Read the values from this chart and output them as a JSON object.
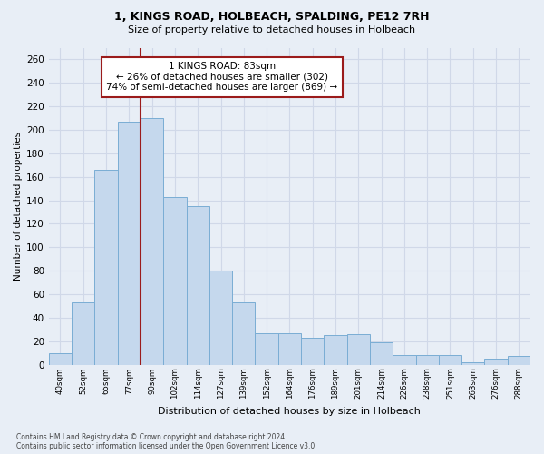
{
  "title1": "1, KINGS ROAD, HOLBEACH, SPALDING, PE12 7RH",
  "title2": "Size of property relative to detached houses in Holbeach",
  "xlabel": "Distribution of detached houses by size in Holbeach",
  "ylabel": "Number of detached properties",
  "bar_labels": [
    "40sqm",
    "52sqm",
    "65sqm",
    "77sqm",
    "90sqm",
    "102sqm",
    "114sqm",
    "127sqm",
    "139sqm",
    "152sqm",
    "164sqm",
    "176sqm",
    "189sqm",
    "201sqm",
    "214sqm",
    "226sqm",
    "238sqm",
    "251sqm",
    "263sqm",
    "276sqm",
    "288sqm"
  ],
  "bar_values": [
    10,
    53,
    166,
    207,
    210,
    143,
    135,
    80,
    53,
    27,
    27,
    23,
    25,
    26,
    19,
    8,
    8,
    8,
    2,
    5,
    7
  ],
  "bar_color": "#c5d8ed",
  "bar_edge_color": "#7aadd4",
  "vline_x": 3.5,
  "vline_color": "#9b1b1b",
  "annotation_text": "1 KINGS ROAD: 83sqm\n← 26% of detached houses are smaller (302)\n74% of semi-detached houses are larger (869) →",
  "annotation_box_color": "white",
  "annotation_box_edge": "#9b1b1b",
  "ylim": [
    0,
    270
  ],
  "yticks": [
    0,
    20,
    40,
    60,
    80,
    100,
    120,
    140,
    160,
    180,
    200,
    220,
    240,
    260
  ],
  "grid_color": "#d0d8e8",
  "footnote1": "Contains HM Land Registry data © Crown copyright and database right 2024.",
  "footnote2": "Contains public sector information licensed under the Open Government Licence v3.0.",
  "bg_color": "#e8eef6",
  "plot_bg_color": "#e8eef6"
}
